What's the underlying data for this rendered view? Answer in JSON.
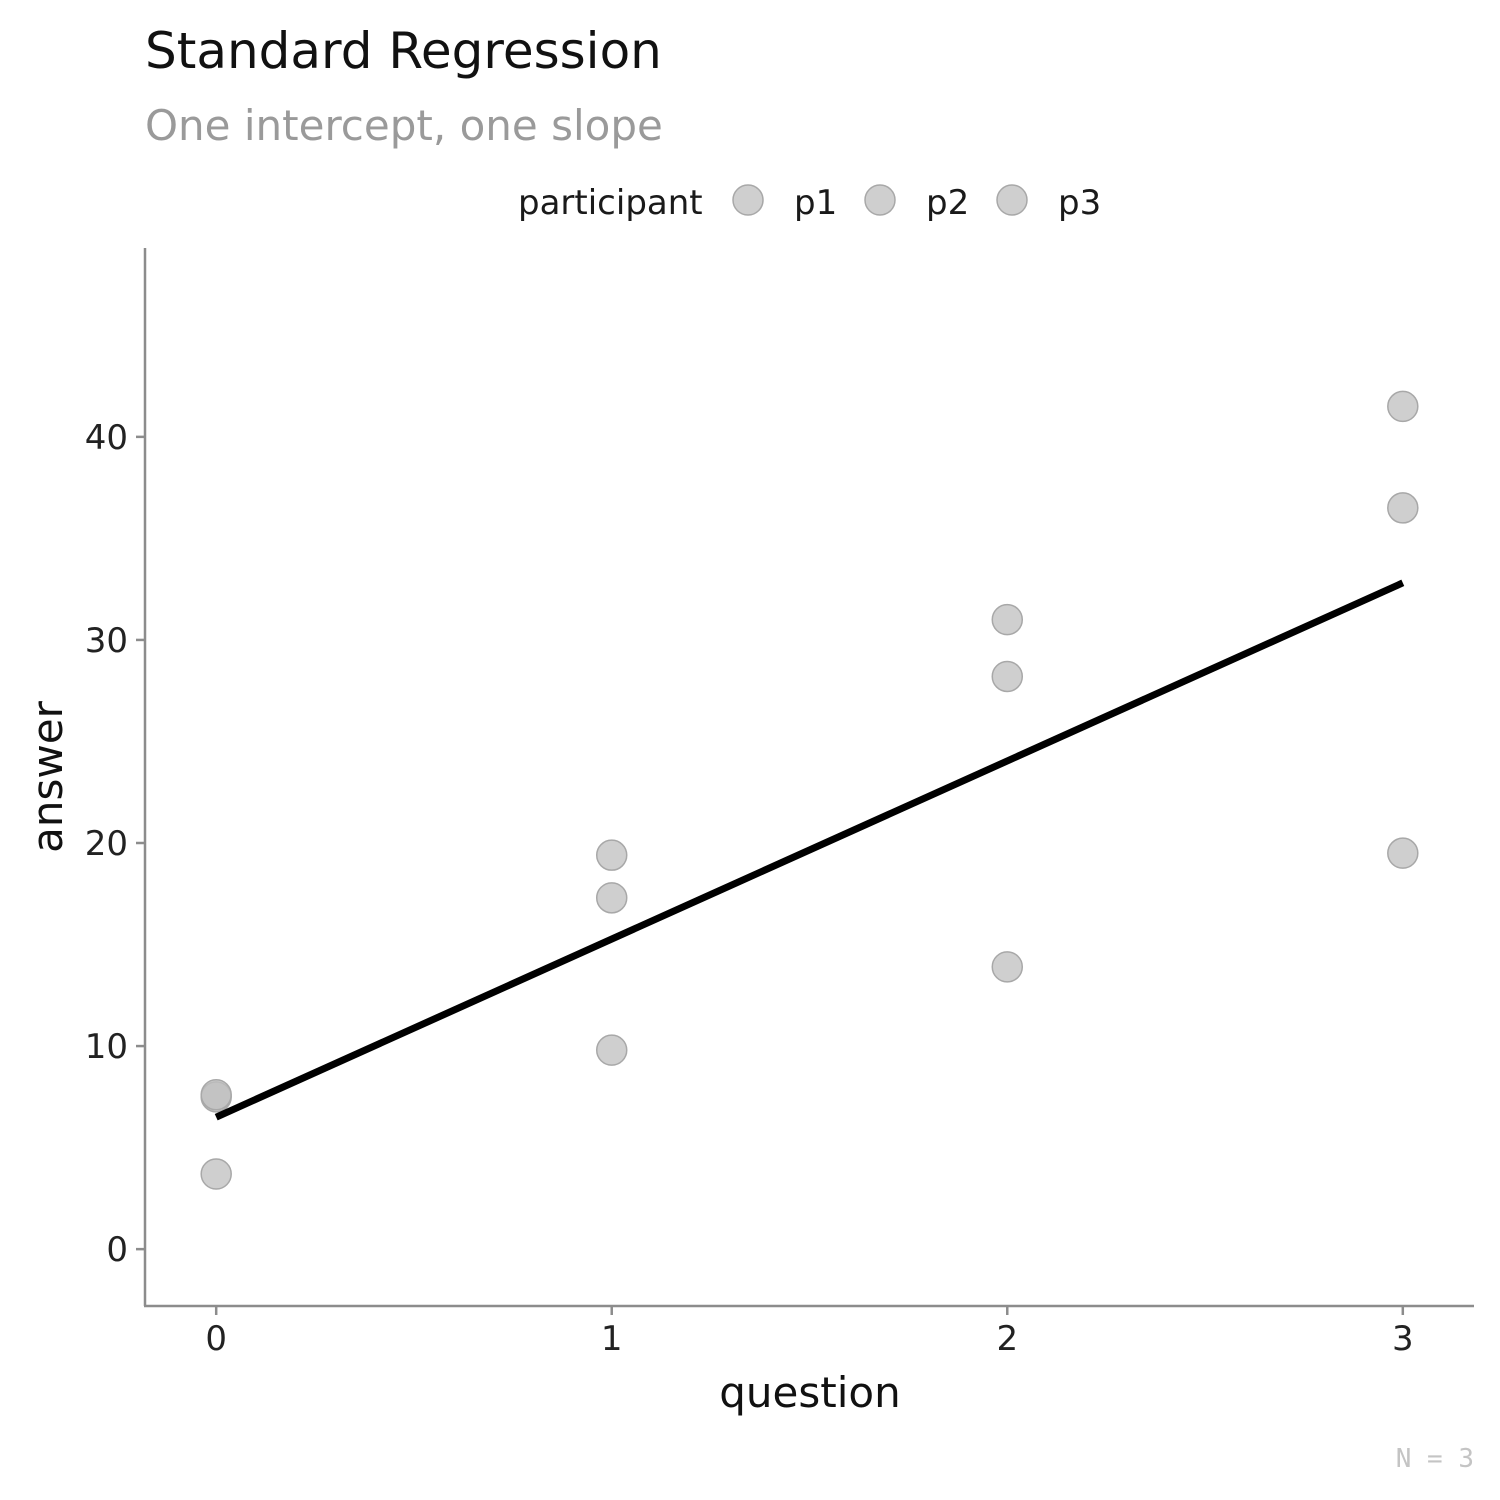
{
  "chart_data": {
    "type": "scatter",
    "title": "Standard Regression",
    "subtitle": "One intercept, one slope",
    "xlabel": "question",
    "ylabel": "answer",
    "caption": "N = 3",
    "legend": {
      "title": "participant",
      "placement": "top",
      "entries": [
        "p1",
        "p2",
        "p3"
      ]
    },
    "xlim": [
      -0.18,
      3.18
    ],
    "ylim": [
      -2.8,
      49.3
    ],
    "x_ticks": [
      0,
      1,
      2,
      3
    ],
    "y_ticks": [
      0,
      10,
      20,
      30,
      40
    ],
    "grid": false,
    "point_color": "#bfbfbf",
    "line_color": "#000000",
    "series": [
      {
        "name": "p1",
        "x": [
          0,
          1,
          2,
          3
        ],
        "y": [
          7.5,
          17.3,
          28.2,
          36.5
        ]
      },
      {
        "name": "p2",
        "x": [
          0,
          1,
          2,
          3
        ],
        "y": [
          7.6,
          19.4,
          31.0,
          41.5
        ]
      },
      {
        "name": "p3",
        "x": [
          0,
          1,
          2,
          3
        ],
        "y": [
          3.7,
          9.8,
          13.9,
          19.5
        ]
      }
    ],
    "regression": {
      "intercept": 6.5,
      "slope": 8.77,
      "x_range": [
        0,
        3
      ]
    }
  }
}
